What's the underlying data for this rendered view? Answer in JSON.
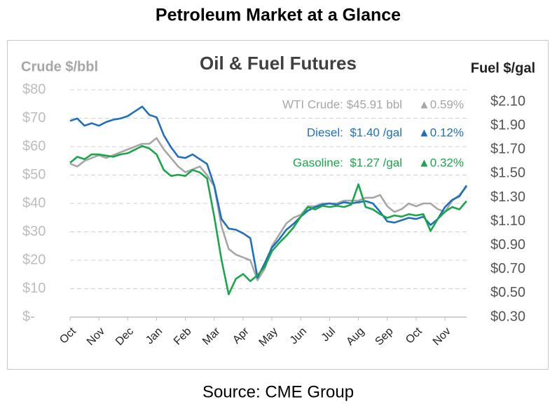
{
  "page_title": "Petroleum Market at a Glance",
  "source": "Source: CME Group",
  "chart_data": {
    "type": "line",
    "title": "Oil & Fuel Futures",
    "ylabel": "Crude $/bbl",
    "y2label": "Fuel $/gal",
    "categories": [
      "Oct",
      null,
      null,
      null,
      "Nov",
      null,
      null,
      null,
      "Dec",
      null,
      null,
      null,
      "Jan",
      null,
      null,
      null,
      "Feb",
      null,
      null,
      null,
      "Mar",
      null,
      null,
      null,
      "Apr",
      null,
      null,
      null,
      "May",
      null,
      null,
      null,
      "Jun",
      null,
      null,
      null,
      "Jul",
      null,
      null,
      null,
      "Aug",
      null,
      null,
      null,
      "Sep",
      null,
      null,
      null,
      "Oct",
      null,
      null,
      null,
      "Nov",
      null,
      null,
      null
    ],
    "ylim": [
      0,
      80
    ],
    "yticks": [
      {
        "value": 0,
        "label": "$-"
      },
      {
        "value": 10,
        "label": "$10"
      },
      {
        "value": 20,
        "label": "$20"
      },
      {
        "value": 30,
        "label": "$30"
      },
      {
        "value": 40,
        "label": "$40"
      },
      {
        "value": 50,
        "label": "$50"
      },
      {
        "value": 60,
        "label": "$60"
      },
      {
        "value": 70,
        "label": "$70"
      },
      {
        "value": 80,
        "label": "$80"
      }
    ],
    "y2lim": [
      0.3,
      2.2
    ],
    "y2ticks": [
      {
        "value": 0.3,
        "label": "$0.30"
      },
      {
        "value": 0.5,
        "label": "$0.50"
      },
      {
        "value": 0.7,
        "label": "$0.70"
      },
      {
        "value": 0.9,
        "label": "$0.90"
      },
      {
        "value": 1.1,
        "label": "$1.10"
      },
      {
        "value": 1.3,
        "label": "$1.30"
      },
      {
        "value": 1.5,
        "label": "$1.50"
      },
      {
        "value": 1.7,
        "label": "$1.70"
      },
      {
        "value": 1.9,
        "label": "$1.90"
      },
      {
        "value": 2.1,
        "label": "$2.10"
      }
    ],
    "grid": true,
    "series": [
      {
        "name": "WTI Crude: $45.91 bbl",
        "change": "▲0.59%",
        "color": "#a6a6a6",
        "values": [
          54,
          53,
          55,
          56,
          57,
          56,
          57,
          58,
          59,
          60,
          61,
          61,
          63,
          59,
          56,
          53,
          51,
          52,
          53,
          50,
          46,
          32,
          24,
          22,
          21,
          20,
          13,
          17,
          25,
          29,
          33,
          35,
          36,
          39,
          39,
          40,
          40,
          40,
          41,
          41,
          41,
          42,
          42,
          43,
          39,
          37,
          38,
          40,
          39,
          40,
          40,
          38,
          37,
          41,
          43,
          45.91
        ]
      },
      {
        "name": "Diesel:  $1.40 /gal",
        "change": "▲0.12%",
        "color": "#1f6fbf",
        "axis": "y2",
        "values": [
          1.94,
          1.96,
          1.9,
          1.92,
          1.9,
          1.93,
          1.95,
          1.96,
          1.98,
          2.02,
          2.06,
          1.99,
          1.97,
          1.82,
          1.72,
          1.64,
          1.63,
          1.66,
          1.62,
          1.58,
          1.4,
          1.12,
          1.04,
          1.03,
          1.0,
          0.96,
          0.63,
          0.75,
          0.88,
          0.95,
          1.03,
          1.08,
          1.14,
          1.19,
          1.22,
          1.24,
          1.25,
          1.24,
          1.26,
          1.25,
          1.26,
          1.27,
          1.25,
          1.18,
          1.1,
          1.09,
          1.11,
          1.13,
          1.12,
          1.14,
          1.07,
          1.12,
          1.22,
          1.28,
          1.31,
          1.4
        ]
      },
      {
        "name": "Gasoline:  $1.27 /gal",
        "change": "▲0.32%",
        "color": "#1aa64a",
        "axis": "y2",
        "values": [
          1.59,
          1.64,
          1.62,
          1.66,
          1.66,
          1.65,
          1.64,
          1.66,
          1.67,
          1.7,
          1.73,
          1.71,
          1.66,
          1.53,
          1.48,
          1.49,
          1.48,
          1.53,
          1.51,
          1.46,
          1.14,
          0.78,
          0.49,
          0.62,
          0.66,
          0.6,
          0.65,
          0.72,
          0.85,
          0.92,
          0.98,
          1.05,
          1.14,
          1.22,
          1.2,
          1.23,
          1.22,
          1.23,
          1.22,
          1.24,
          1.41,
          1.22,
          1.2,
          1.16,
          1.13,
          1.15,
          1.14,
          1.16,
          1.15,
          1.16,
          1.02,
          1.12,
          1.18,
          1.22,
          1.2,
          1.27
        ]
      }
    ]
  }
}
